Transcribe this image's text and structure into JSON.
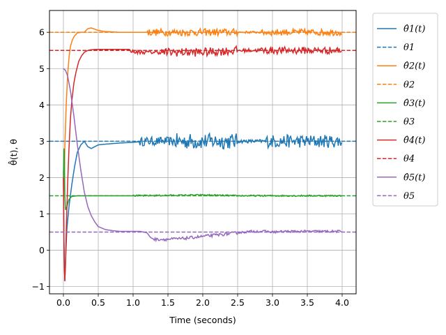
{
  "chart_data": {
    "type": "line",
    "xlabel": "Time (seconds)",
    "ylabel": "θ̂(t),  θ",
    "xlim": [
      -0.2,
      4.2
    ],
    "ylim": [
      -1.2,
      6.6
    ],
    "xticks": [
      0.0,
      0.5,
      1.0,
      1.5,
      2.0,
      2.5,
      3.0,
      3.5,
      4.0
    ],
    "xtick_labels": [
      "0.0",
      "0.5",
      "1.0",
      "1.5",
      "2.0",
      "2.5",
      "3.0",
      "3.5",
      "4.0"
    ],
    "yticks": [
      -1,
      0,
      1,
      2,
      3,
      4,
      5,
      6
    ],
    "ytick_labels": [
      "−1",
      "0",
      "1",
      "2",
      "3",
      "4",
      "5",
      "6"
    ],
    "grid": true,
    "legend_position": "outside-right",
    "series": [
      {
        "name": "θ̂1(t)",
        "color": "#1f77b4",
        "style": "solid",
        "x": [
          0.0,
          0.01,
          0.02,
          0.03,
          0.05,
          0.08,
          0.12,
          0.16,
          0.2,
          0.25,
          0.3,
          0.35,
          0.4,
          0.5,
          0.6,
          0.8,
          1.0,
          1.2,
          1.4,
          1.6,
          1.8,
          2.0,
          2.2,
          2.4,
          2.6,
          2.8,
          3.0,
          3.2,
          3.4,
          3.6,
          3.8,
          4.0
        ],
        "y": [
          2.0,
          -0.2,
          -0.85,
          -0.3,
          0.6,
          1.2,
          1.8,
          2.3,
          2.7,
          2.9,
          3.0,
          2.85,
          2.8,
          2.9,
          2.92,
          2.95,
          2.97,
          3.0,
          3.0,
          3.0,
          3.0,
          3.0,
          3.0,
          3.0,
          3.0,
          3.0,
          3.0,
          3.0,
          3.0,
          3.0,
          3.0,
          3.0
        ],
        "noise": [
          [
            0,
            1.1,
            0.0
          ],
          [
            1.1,
            1.6,
            0.12
          ],
          [
            1.6,
            2.5,
            0.22
          ],
          [
            2.5,
            2.9,
            0.05
          ],
          [
            2.9,
            4.0,
            0.18
          ]
        ]
      },
      {
        "name": "θ1",
        "color": "#1f77b4",
        "style": "dashed",
        "x": [
          -0.2,
          4.2
        ],
        "y": [
          3.0,
          3.0
        ]
      },
      {
        "name": "θ̂2(t)",
        "color": "#ff7f0e",
        "style": "solid",
        "x": [
          0.0,
          0.01,
          0.02,
          0.04,
          0.06,
          0.08,
          0.1,
          0.13,
          0.16,
          0.2,
          0.25,
          0.3,
          0.35,
          0.4,
          0.5,
          0.6,
          0.8,
          1.0,
          1.2,
          1.5,
          2.0,
          2.5,
          3.0,
          3.5,
          4.0
        ],
        "y": [
          2.2,
          1.5,
          2.8,
          4.0,
          4.8,
          5.3,
          5.6,
          5.8,
          5.9,
          5.98,
          6.0,
          6.0,
          6.1,
          6.12,
          6.05,
          6.02,
          6.0,
          6.0,
          6.0,
          6.0,
          6.0,
          6.0,
          6.0,
          6.0,
          6.0
        ],
        "noise": [
          [
            0,
            1.2,
            0.0
          ],
          [
            1.2,
            2.5,
            0.1
          ],
          [
            2.5,
            2.85,
            0.03
          ],
          [
            2.85,
            4.0,
            0.09
          ]
        ]
      },
      {
        "name": "θ2",
        "color": "#ff7f0e",
        "style": "dashed",
        "x": [
          -0.2,
          4.2
        ],
        "y": [
          6.0,
          6.0
        ]
      },
      {
        "name": "θ̂3(t)",
        "color": "#2ca02c",
        "style": "solid",
        "x": [
          0.0,
          0.01,
          0.02,
          0.03,
          0.05,
          0.08,
          0.12,
          0.2,
          0.3,
          0.5,
          1.0,
          1.5,
          2.0,
          2.5,
          3.0,
          3.5,
          4.0
        ],
        "y": [
          2.0,
          3.0,
          1.5,
          1.1,
          1.2,
          1.4,
          1.48,
          1.5,
          1.5,
          1.5,
          1.5,
          1.51,
          1.52,
          1.5,
          1.5,
          1.5,
          1.5
        ],
        "noise": [
          [
            0,
            1.0,
            0.0
          ],
          [
            1.0,
            4.0,
            0.02
          ]
        ]
      },
      {
        "name": "θ3",
        "color": "#2ca02c",
        "style": "dashed",
        "x": [
          -0.2,
          4.2
        ],
        "y": [
          1.5,
          1.5
        ]
      },
      {
        "name": "θ̂4(t)",
        "color": "#d62728",
        "style": "solid",
        "x": [
          0.0,
          0.01,
          0.02,
          0.03,
          0.04,
          0.06,
          0.08,
          0.1,
          0.12,
          0.15,
          0.18,
          0.22,
          0.26,
          0.3,
          0.35,
          0.4,
          0.5,
          0.6,
          0.8,
          0.95,
          1.0,
          1.5,
          2.0,
          2.5,
          3.0,
          3.5,
          4.0
        ],
        "y": [
          2.0,
          -0.2,
          -0.85,
          -0.4,
          0.5,
          1.8,
          2.8,
          3.6,
          4.1,
          4.6,
          4.9,
          5.2,
          5.35,
          5.45,
          5.5,
          5.52,
          5.53,
          5.53,
          5.53,
          5.53,
          5.45,
          5.45,
          5.45,
          5.5,
          5.5,
          5.5,
          5.5
        ],
        "noise": [
          [
            0,
            0.95,
            0.0
          ],
          [
            0.95,
            1.4,
            0.05
          ],
          [
            1.4,
            2.5,
            0.12
          ],
          [
            2.5,
            2.8,
            0.05
          ],
          [
            2.8,
            4.0,
            0.1
          ]
        ]
      },
      {
        "name": "θ4",
        "color": "#d62728",
        "style": "dashed",
        "x": [
          -0.2,
          4.2
        ],
        "y": [
          5.5,
          5.5
        ]
      },
      {
        "name": "θ̂5(t)",
        "color": "#9467bd",
        "style": "solid",
        "x": [
          0.0,
          0.03,
          0.06,
          0.1,
          0.15,
          0.2,
          0.25,
          0.3,
          0.35,
          0.4,
          0.45,
          0.5,
          0.6,
          0.7,
          0.8,
          0.9,
          1.0,
          1.1,
          1.2,
          1.25,
          1.3,
          1.5,
          1.7,
          2.0,
          2.2,
          2.5,
          2.7,
          2.9,
          3.0,
          3.2,
          3.5,
          4.0
        ],
        "y": [
          5.0,
          4.95,
          4.8,
          4.4,
          3.7,
          2.9,
          2.2,
          1.6,
          1.2,
          0.95,
          0.78,
          0.65,
          0.57,
          0.54,
          0.52,
          0.52,
          0.52,
          0.52,
          0.48,
          0.35,
          0.3,
          0.3,
          0.32,
          0.38,
          0.42,
          0.48,
          0.52,
          0.52,
          0.5,
          0.52,
          0.52,
          0.52
        ],
        "noise": [
          [
            0,
            1.3,
            0.0
          ],
          [
            1.3,
            2.5,
            0.04
          ],
          [
            2.5,
            4.0,
            0.03
          ]
        ]
      },
      {
        "name": "θ5",
        "color": "#9467bd",
        "style": "dashed",
        "x": [
          -0.2,
          4.2
        ],
        "y": [
          0.5,
          0.5
        ]
      }
    ]
  }
}
